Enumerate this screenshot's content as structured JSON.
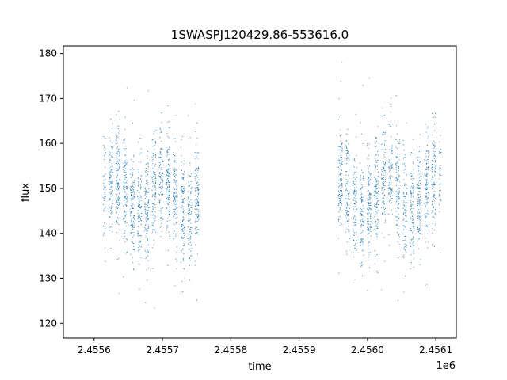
{
  "chart_data": {
    "type": "scatter",
    "title": "1SWASPJ120429.86-553616.0",
    "xlabel": "time",
    "ylabel": "flux",
    "x_offset_label": "1e6",
    "xlim": [
      2.455555,
      2.45613
    ],
    "ylim": [
      116.7,
      181.7
    ],
    "xticks": [
      2.4556,
      2.4557,
      2.4558,
      2.4559,
      2.456,
      2.4561
    ],
    "xtick_labels": [
      "2.4556",
      "2.4557",
      "2.4558",
      "2.4559",
      "2.4560",
      "2.4561"
    ],
    "yticks": [
      120,
      130,
      140,
      150,
      160,
      170,
      180
    ],
    "ytick_labels": [
      "120",
      "130",
      "140",
      "150",
      "160",
      "170",
      "180"
    ],
    "grid": false,
    "point_color": "#1f77b4",
    "segments": [
      {
        "x_start": 2.455613,
        "x_end": 2.455755,
        "flux_center": 148.5,
        "flux_spread": 6.0
      },
      {
        "x_start": 2.455953,
        "x_end": 2.456108,
        "flux_center": 148.5,
        "flux_spread": 6.0
      }
    ]
  }
}
